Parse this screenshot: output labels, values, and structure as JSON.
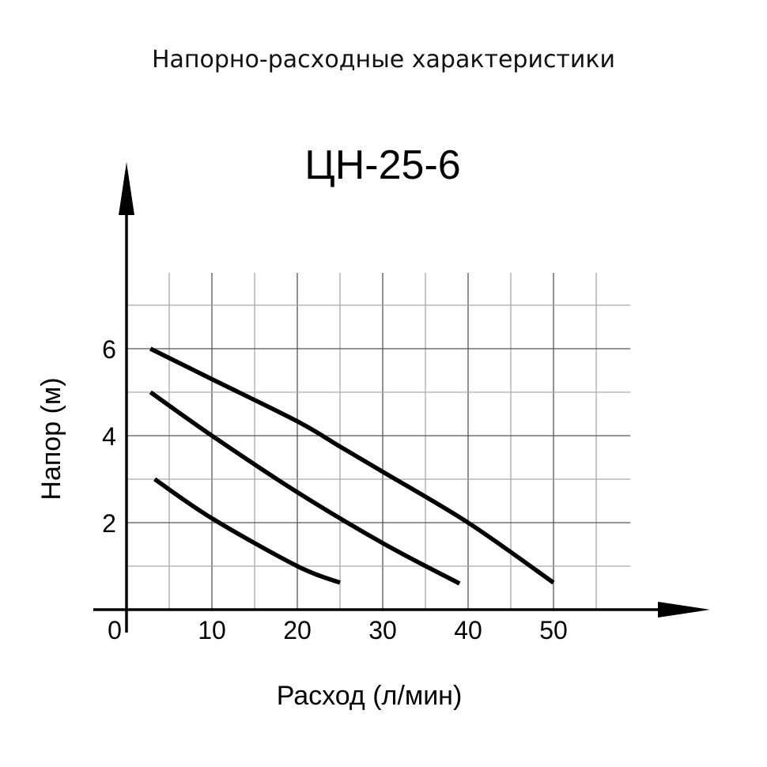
{
  "chart_data": {
    "type": "line",
    "title": "Напорно-расходные характеристики",
    "subtitle": "ЦН-25-6",
    "xlabel": "Расход (л/мин)",
    "ylabel": "Напор (м)",
    "x_ticks": [
      "0",
      "10",
      "20",
      "30",
      "40",
      "50"
    ],
    "y_ticks": [
      "2",
      "4",
      "6"
    ],
    "xlim": [
      0,
      59
    ],
    "ylim": [
      0,
      7
    ],
    "grid": true,
    "grid_step_x": 5,
    "grid_step_y": 1,
    "line_color": "#000000",
    "series": [
      {
        "x": [
          2.8,
          10,
          20,
          25,
          30,
          40,
          50
        ],
        "y": [
          6.0,
          5.3,
          4.33,
          3.75,
          3.17,
          2.0,
          0.62
        ]
      },
      {
        "x": [
          2.8,
          10,
          20,
          30,
          39
        ],
        "y": [
          5.0,
          4.0,
          2.7,
          1.53,
          0.6
        ]
      },
      {
        "x": [
          3.3,
          10,
          20,
          25
        ],
        "y": [
          3.0,
          2.1,
          1.0,
          0.62
        ]
      }
    ]
  }
}
